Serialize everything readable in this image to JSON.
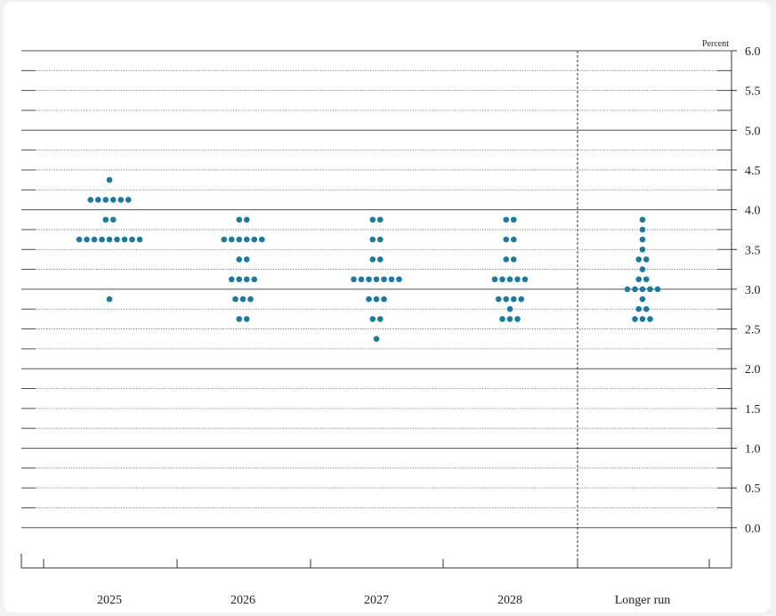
{
  "chart_data": {
    "type": "scatter",
    "title": "",
    "ylabel": "Percent",
    "xlabel": "",
    "ylim": [
      -0.25,
      6.0
    ],
    "y_ticks": [
      "6.0",
      "5.5",
      "5.0",
      "4.5",
      "4.0",
      "3.5",
      "3.0",
      "2.5",
      "2.0",
      "1.5",
      "1.0",
      "0.5",
      "0.0"
    ],
    "grid": true,
    "legend": "none",
    "dot_color": "#1a7aa0",
    "categories": [
      "2025",
      "2026",
      "2027",
      "2028",
      "Longer run"
    ],
    "series": [
      {
        "category": "2025",
        "points": [
          {
            "y": 4.375,
            "count": 1
          },
          {
            "y": 4.125,
            "count": 6
          },
          {
            "y": 3.875,
            "count": 2
          },
          {
            "y": 3.625,
            "count": 9
          },
          {
            "y": 2.875,
            "count": 1
          }
        ]
      },
      {
        "category": "2026",
        "points": [
          {
            "y": 3.875,
            "count": 2
          },
          {
            "y": 3.625,
            "count": 6
          },
          {
            "y": 3.375,
            "count": 2
          },
          {
            "y": 3.125,
            "count": 4
          },
          {
            "y": 2.875,
            "count": 3
          },
          {
            "y": 2.625,
            "count": 2
          }
        ]
      },
      {
        "category": "2027",
        "points": [
          {
            "y": 3.875,
            "count": 2
          },
          {
            "y": 3.625,
            "count": 2
          },
          {
            "y": 3.375,
            "count": 2
          },
          {
            "y": 3.125,
            "count": 7
          },
          {
            "y": 2.875,
            "count": 3
          },
          {
            "y": 2.625,
            "count": 2
          },
          {
            "y": 2.375,
            "count": 1
          }
        ]
      },
      {
        "category": "2028",
        "points": [
          {
            "y": 3.875,
            "count": 2
          },
          {
            "y": 3.625,
            "count": 2
          },
          {
            "y": 3.375,
            "count": 2
          },
          {
            "y": 3.125,
            "count": 5
          },
          {
            "y": 2.875,
            "count": 4
          },
          {
            "y": 2.75,
            "count": 1
          },
          {
            "y": 2.625,
            "count": 3
          }
        ]
      },
      {
        "category": "Longer run",
        "points": [
          {
            "y": 3.875,
            "count": 1
          },
          {
            "y": 3.75,
            "count": 1
          },
          {
            "y": 3.625,
            "count": 1
          },
          {
            "y": 3.5,
            "count": 1
          },
          {
            "y": 3.375,
            "count": 2
          },
          {
            "y": 3.25,
            "count": 1
          },
          {
            "y": 3.125,
            "count": 2
          },
          {
            "y": 3.0,
            "count": 5
          },
          {
            "y": 2.875,
            "count": 1
          },
          {
            "y": 2.75,
            "count": 2
          },
          {
            "y": 2.625,
            "count": 3
          }
        ]
      }
    ]
  }
}
